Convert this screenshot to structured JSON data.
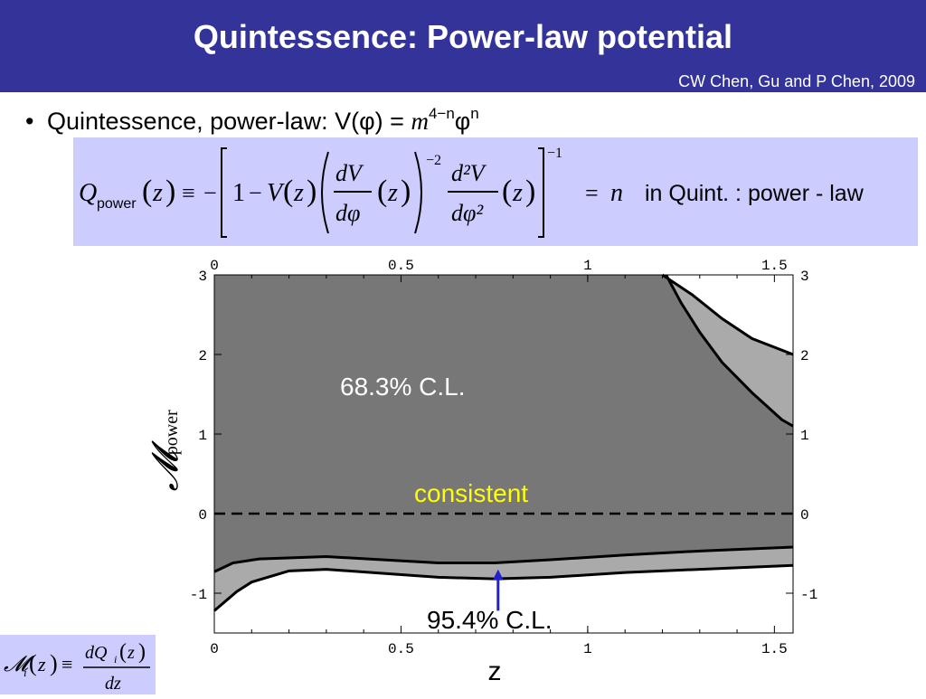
{
  "slide": {
    "title": "Quintessence: Power-law potential",
    "credit": "CW Chen, Gu and P Chen, 2009",
    "bullet_text": "Quintessence, power-law:  V(",
    "bullet_phi": "φ",
    "bullet_eq": ") = ",
    "bullet_m": "m",
    "bullet_exp1": "4−n",
    "bullet_phi2": "φ",
    "bullet_exp2": "n"
  },
  "equation": {
    "Q": "Q",
    "Q_sub": "power",
    "z": "z",
    "one": "1",
    "minus": "−",
    "V": "V",
    "dV": "dV",
    "dphi": "dφ",
    "exp_neg2": "−2",
    "d2V": "d²V",
    "dphi2": "dφ²",
    "exp_neg1": "−1",
    "equiv": "≡",
    "rhs_eq": "=",
    "n": "n",
    "rhs_text": "in  Quint. : power  - law"
  },
  "definition": {
    "M": "𝓜",
    "i": "i",
    "z": "z",
    "equiv": "≡",
    "numerator": "dQ",
    "denominator": "dz"
  },
  "chart_data": {
    "type": "area",
    "xlabel": "z",
    "ylabel": "𝓜",
    "ylabel_sub": "power",
    "xlim": [
      0,
      1.55
    ],
    "ylim": [
      -1.5,
      3
    ],
    "x_ticks": [
      "0",
      "0.5",
      "1",
      "1.5"
    ],
    "x_tick_values": [
      0,
      0.5,
      1,
      1.5
    ],
    "y_ticks": [
      "3",
      "2",
      "1",
      "0",
      "-1"
    ],
    "y_tick_values": [
      3,
      2,
      1,
      0,
      -1
    ],
    "reference_line": 0,
    "colors": {
      "cl68": "#777777",
      "cl95": "#aaaaaa",
      "outside": "#ffffff",
      "arrow": "#2222cc",
      "consistent": "#ffff00"
    },
    "series": [
      {
        "name": "95.4% C.L.",
        "upper": [
          [
            1.2,
            3.0
          ],
          [
            1.28,
            2.75
          ],
          [
            1.36,
            2.45
          ],
          [
            1.44,
            2.2
          ],
          [
            1.55,
            2.0
          ]
        ],
        "lower": [
          [
            0.0,
            -1.22
          ],
          [
            0.03,
            -1.1
          ],
          [
            0.06,
            -0.98
          ],
          [
            0.1,
            -0.86
          ],
          [
            0.2,
            -0.72
          ],
          [
            0.3,
            -0.7
          ],
          [
            0.45,
            -0.75
          ],
          [
            0.6,
            -0.8
          ],
          [
            0.75,
            -0.82
          ],
          [
            0.9,
            -0.8
          ],
          [
            1.1,
            -0.74
          ],
          [
            1.3,
            -0.7
          ],
          [
            1.55,
            -0.65
          ]
        ]
      },
      {
        "name": "68.3% C.L.",
        "upper": [
          [
            1.21,
            3.0
          ],
          [
            1.25,
            2.65
          ],
          [
            1.3,
            2.28
          ],
          [
            1.36,
            1.9
          ],
          [
            1.44,
            1.52
          ],
          [
            1.52,
            1.18
          ],
          [
            1.55,
            1.1
          ]
        ],
        "lower": [
          [
            0.0,
            -0.73
          ],
          [
            0.05,
            -0.62
          ],
          [
            0.12,
            -0.57
          ],
          [
            0.3,
            -0.54
          ],
          [
            0.45,
            -0.58
          ],
          [
            0.6,
            -0.62
          ],
          [
            0.75,
            -0.62
          ],
          [
            0.9,
            -0.58
          ],
          [
            1.1,
            -0.52
          ],
          [
            1.3,
            -0.47
          ],
          [
            1.55,
            -0.42
          ]
        ]
      }
    ],
    "annotations": [
      "68.3% C.L.",
      "consistent",
      "95.4% C.L."
    ],
    "arrow": {
      "x": 0.76,
      "y_from": -1.22,
      "y_to": -0.7
    }
  }
}
